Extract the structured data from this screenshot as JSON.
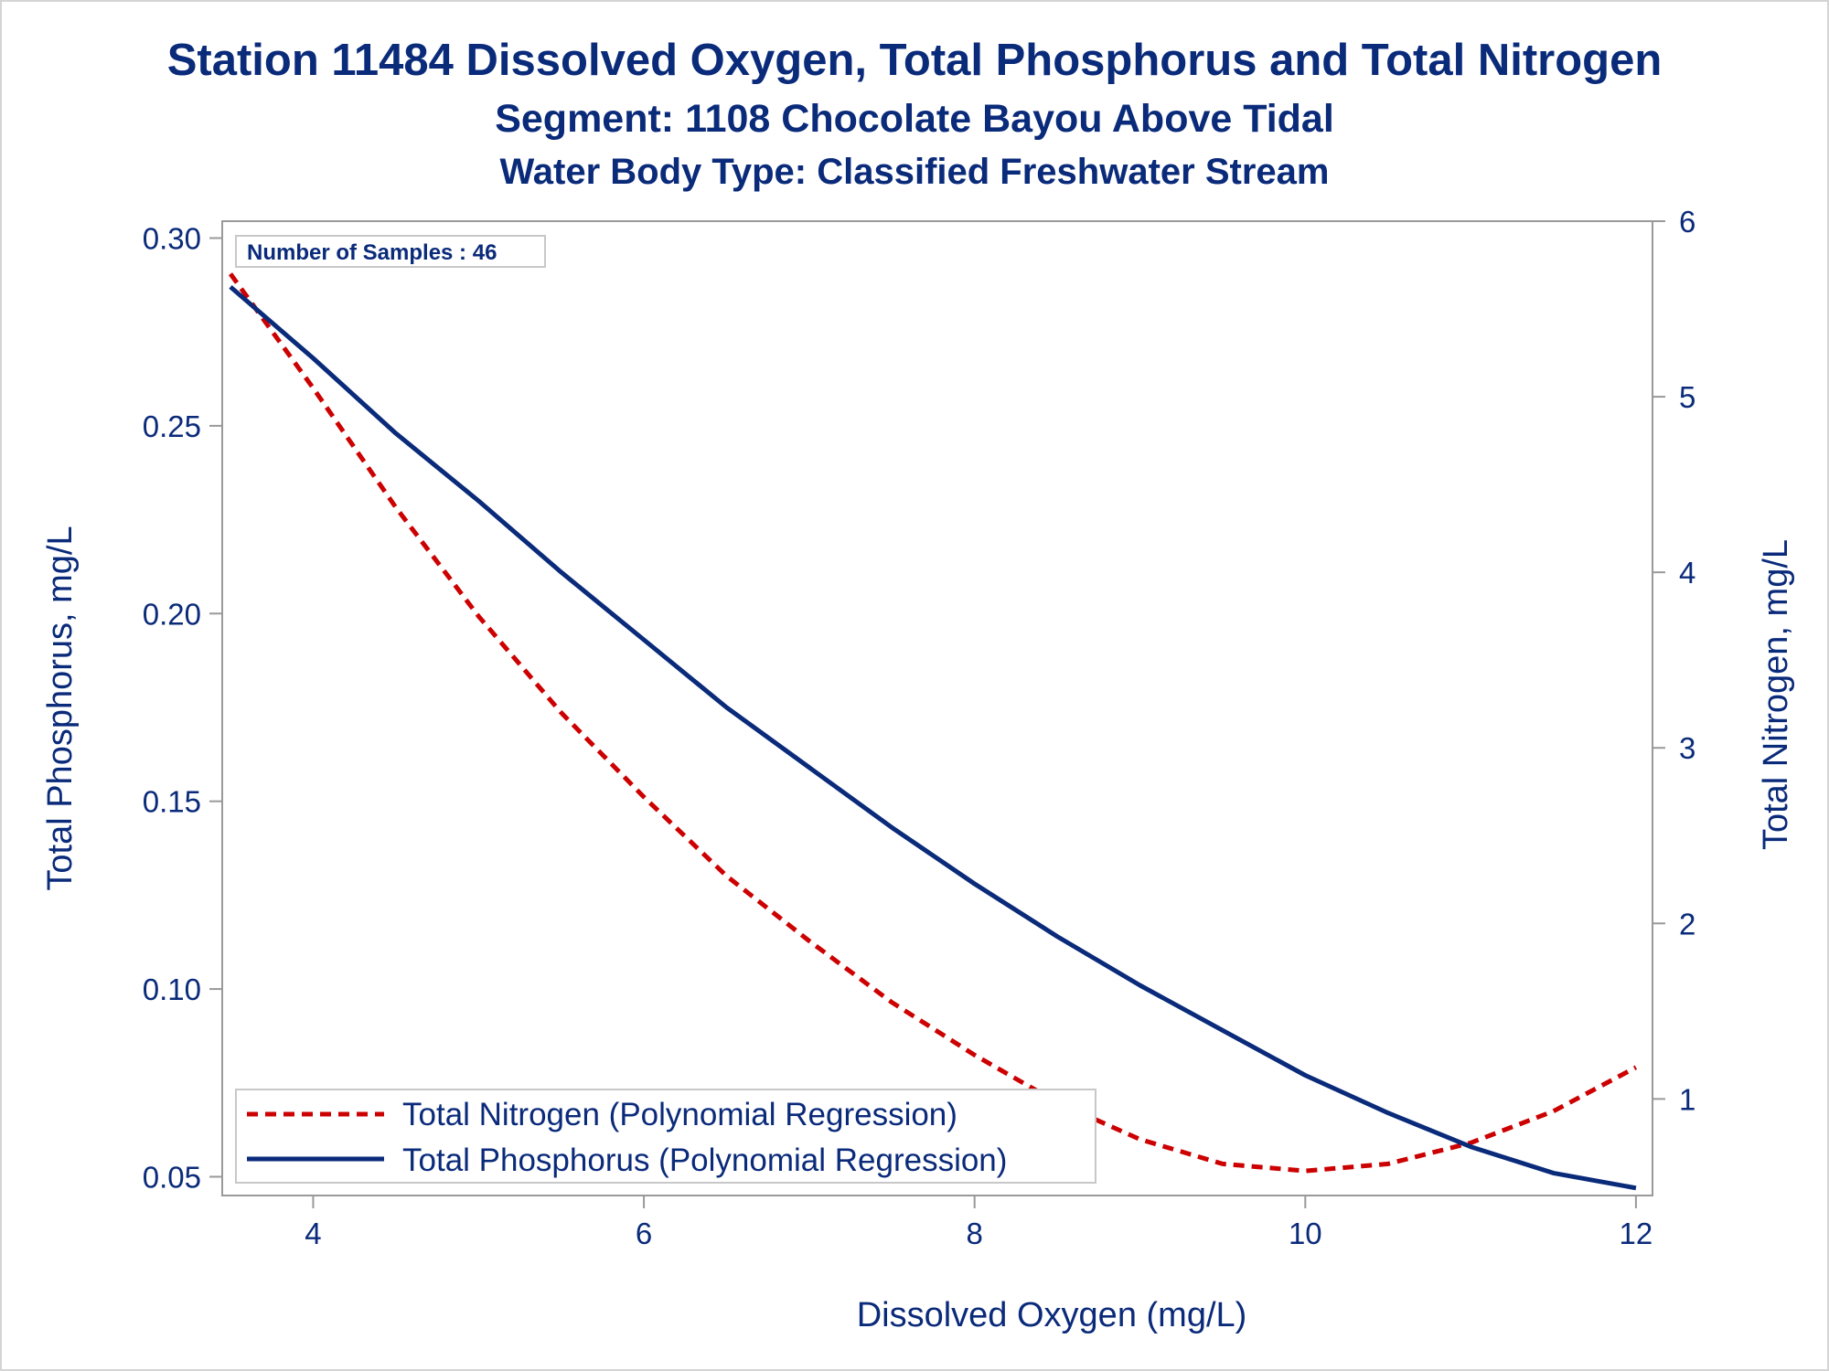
{
  "titles": {
    "line1": "Station 11484  Dissolved Oxygen, Total Phosphorus and Total Nitrogen",
    "line2": "Segment: 1108  Chocolate Bayou Above Tidal",
    "line3": "Water Body Type: Classified Freshwater Stream"
  },
  "colors": {
    "text": "#0a2a7a",
    "nitrogen": "#cc0000",
    "phosphorus": "#0a2a7a",
    "frame": "#999999"
  },
  "chart_data": {
    "type": "line",
    "title": "Station 11484  Dissolved Oxygen, Total Phosphorus and Total Nitrogen",
    "xlabel": "Dissolved Oxygen (mg/L)",
    "ylabel": "Total Phosphorus, mg/L",
    "y2label": "Total Nitrogen, mg/L",
    "xlim": [
      3.45,
      12.1
    ],
    "ylim": [
      0.045,
      0.3045
    ],
    "y2lim": [
      0.45,
      6.0
    ],
    "xticks": [
      "4",
      "6",
      "8",
      "10",
      "12"
    ],
    "yticks": [
      "0.05",
      "0.10",
      "0.15",
      "0.20",
      "0.25",
      "0.30"
    ],
    "y2ticks": [
      "1",
      "2",
      "3",
      "4",
      "5",
      "6"
    ],
    "annotation": "Number of Samples : 46",
    "grid": false,
    "legend_position": "bottom-left",
    "series": [
      {
        "name": "Total Nitrogen (Polynomial Regression)",
        "axis": "right",
        "style": "dashed",
        "x": [
          3.5,
          4.0,
          4.5,
          5.0,
          5.5,
          6.0,
          6.5,
          7.0,
          7.5,
          8.0,
          8.5,
          9.0,
          9.5,
          10.0,
          10.5,
          11.0,
          11.5,
          12.0
        ],
        "y": [
          5.7,
          5.05,
          4.37,
          3.75,
          3.2,
          2.72,
          2.27,
          1.9,
          1.55,
          1.25,
          0.98,
          0.77,
          0.63,
          0.59,
          0.63,
          0.75,
          0.93,
          1.18
        ]
      },
      {
        "name": "Total Phosphorus (Polynomial Regression)",
        "axis": "left",
        "style": "solid",
        "x": [
          3.5,
          4.0,
          4.5,
          5.0,
          5.5,
          6.0,
          6.5,
          7.0,
          7.5,
          8.0,
          8.5,
          9.0,
          9.5,
          10.0,
          10.5,
          11.0,
          11.5,
          12.0
        ],
        "y": [
          0.287,
          0.268,
          0.248,
          0.23,
          0.211,
          0.193,
          0.175,
          0.159,
          0.143,
          0.128,
          0.114,
          0.101,
          0.089,
          0.077,
          0.067,
          0.058,
          0.051,
          0.047
        ]
      }
    ]
  }
}
